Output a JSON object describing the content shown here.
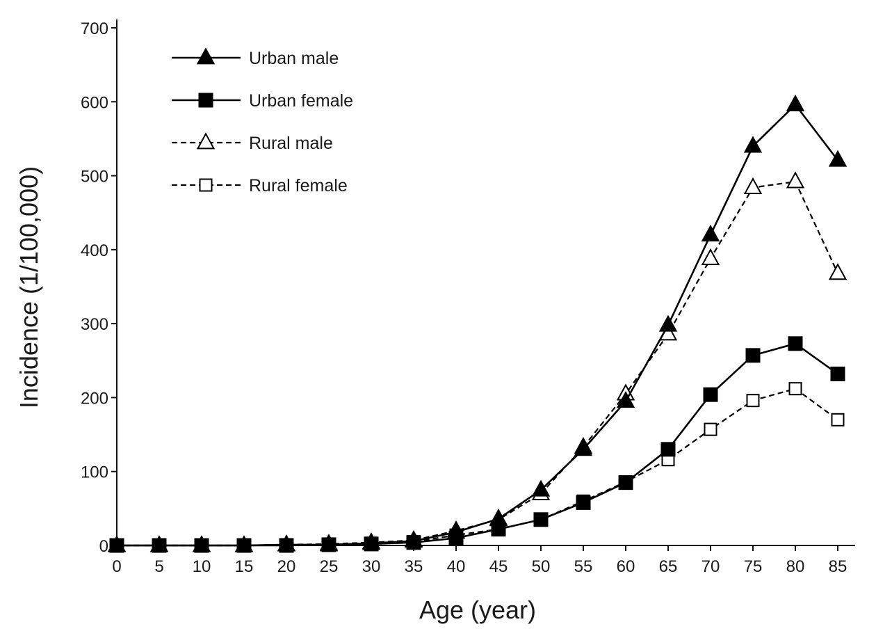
{
  "chart_data": {
    "type": "line",
    "title": "",
    "xlabel": "Age (year)",
    "ylabel": "Incidence (1/100,000)",
    "x": [
      0,
      5,
      10,
      15,
      20,
      25,
      30,
      35,
      40,
      45,
      50,
      55,
      60,
      65,
      70,
      75,
      80,
      85
    ],
    "x_ticks": [
      "0",
      "5",
      "10",
      "15",
      "20",
      "25",
      "30",
      "35",
      "40",
      "45",
      "50",
      "55",
      "60",
      "65",
      "70",
      "75",
      "80",
      "85"
    ],
    "y_ticks": [
      "0",
      "100",
      "200",
      "300",
      "400",
      "500",
      "600",
      "700"
    ],
    "xlim": [
      0,
      85
    ],
    "ylim": [
      0,
      700
    ],
    "grid": false,
    "legend_position": "top-left",
    "series": [
      {
        "name": "Urban male",
        "marker": "triangle-filled",
        "line": "solid",
        "values": [
          0,
          0,
          0,
          0,
          1,
          1,
          3,
          6,
          18,
          36,
          75,
          130,
          195,
          298,
          420,
          540,
          596,
          521
        ]
      },
      {
        "name": "Urban female",
        "marker": "square-filled",
        "line": "solid",
        "values": [
          0,
          0,
          0,
          0,
          0,
          1,
          2,
          4,
          10,
          22,
          35,
          58,
          85,
          130,
          204,
          257,
          273,
          232
        ]
      },
      {
        "name": "Rural male",
        "marker": "triangle-open",
        "line": "dashed",
        "values": [
          0,
          0,
          0,
          0,
          1,
          2,
          4,
          7,
          20,
          35,
          70,
          133,
          205,
          286,
          388,
          484,
          492,
          368
        ]
      },
      {
        "name": "Rural female",
        "marker": "square-open",
        "line": "dashed",
        "values": [
          0,
          0,
          0,
          0,
          1,
          1,
          3,
          5,
          14,
          22,
          35,
          60,
          86,
          116,
          157,
          196,
          212,
          170
        ]
      }
    ]
  }
}
